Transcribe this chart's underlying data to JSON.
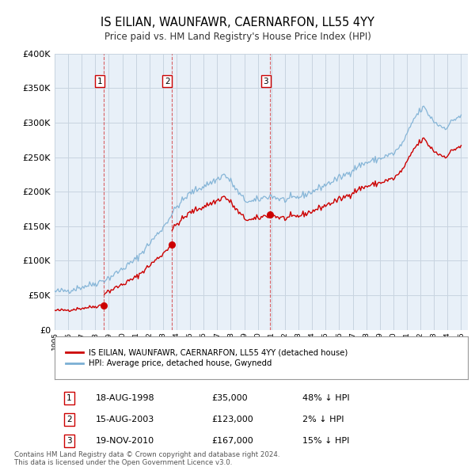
{
  "title": "IS EILIAN, WAUNFAWR, CAERNARFON, LL55 4YY",
  "subtitle": "Price paid vs. HM Land Registry's House Price Index (HPI)",
  "ylim": [
    0,
    400000
  ],
  "yticks": [
    0,
    50000,
    100000,
    150000,
    200000,
    250000,
    300000,
    350000,
    400000
  ],
  "ytick_labels": [
    "£0",
    "£50K",
    "£100K",
    "£150K",
    "£200K",
    "£250K",
    "£300K",
    "£350K",
    "£400K"
  ],
  "xlim_start": 1995.0,
  "xlim_end": 2025.5,
  "sale_dates_decimal": [
    1998.63,
    2003.62,
    2010.89
  ],
  "sale_prices": [
    35000,
    123000,
    167000
  ],
  "sale_labels": [
    "1",
    "2",
    "3"
  ],
  "sale_date_strs": [
    "18-AUG-1998",
    "15-AUG-2003",
    "19-NOV-2010"
  ],
  "sale_price_strs": [
    "£35,000",
    "£123,000",
    "£167,000"
  ],
  "sale_hpi_strs": [
    "48% ↓ HPI",
    "2% ↓ HPI",
    "15% ↓ HPI"
  ],
  "property_line_color": "#cc0000",
  "hpi_line_color": "#7bafd4",
  "background_color": "#ffffff",
  "chart_bg_color": "#e8f0f8",
  "grid_color": "#c8d4e0",
  "legend_label_red": "IS EILIAN, WAUNFAWR, CAERNARFON, LL55 4YY (detached house)",
  "legend_label_blue": "HPI: Average price, detached house, Gwynedd",
  "footer": "Contains HM Land Registry data © Crown copyright and database right 2024.\nThis data is licensed under the Open Government Licence v3.0."
}
